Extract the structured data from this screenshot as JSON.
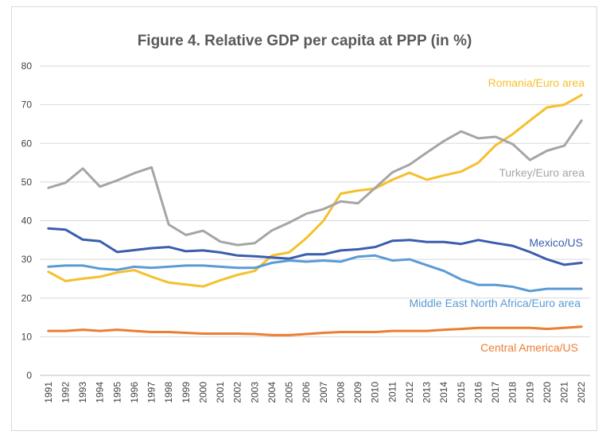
{
  "chart_data": {
    "type": "line",
    "title": "Figure 4. Relative GDP per capita at PPP (in %)",
    "xlabel": "",
    "ylabel": "",
    "ylim": [
      0,
      80
    ],
    "yticks": [
      0,
      10,
      20,
      30,
      40,
      50,
      60,
      70,
      80
    ],
    "grid": "horizontal",
    "legend": "inline labels",
    "x": [
      "1991",
      "1992",
      "1993",
      "1994",
      "1995",
      "1996",
      "1997",
      "1998",
      "1999",
      "2000",
      "2001",
      "2002",
      "2003",
      "2004",
      "2005",
      "2006",
      "2007",
      "2008",
      "2009",
      "2010",
      "2011",
      "2012",
      "2013",
      "2014",
      "2015",
      "2016",
      "2017",
      "2018",
      "2019",
      "2020",
      "2021",
      "2022"
    ],
    "series": [
      {
        "name": "Romania/Euro area",
        "color": "#F5C02C",
        "values": [
          26.8,
          24.4,
          25.0,
          25.5,
          26.6,
          27.2,
          25.5,
          24.0,
          23.5,
          23.0,
          24.6,
          26.0,
          27.0,
          31.0,
          31.8,
          35.5,
          40.0,
          47.0,
          47.8,
          48.3,
          50.6,
          52.4,
          50.6,
          51.7,
          52.7,
          55.0,
          59.5,
          62.4,
          65.9,
          69.3,
          70.0,
          72.5
        ]
      },
      {
        "name": "Turkey/Euro area",
        "color": "#A5A5A5",
        "values": [
          48.5,
          49.8,
          53.5,
          48.8,
          50.4,
          52.3,
          53.8,
          39.0,
          36.3,
          37.4,
          34.6,
          33.7,
          34.2,
          37.5,
          39.5,
          41.8,
          43.0,
          45.0,
          44.5,
          48.5,
          52.5,
          54.5,
          57.6,
          60.6,
          63.1,
          61.3,
          61.7,
          59.8,
          55.7,
          58.1,
          59.4,
          65.9
        ]
      },
      {
        "name": "Mexico/US",
        "color": "#3A5DAE",
        "values": [
          38.0,
          37.7,
          35.1,
          34.7,
          31.9,
          32.4,
          32.9,
          33.2,
          32.1,
          32.3,
          31.8,
          31.0,
          30.8,
          30.5,
          30.2,
          31.3,
          31.3,
          32.3,
          32.6,
          33.2,
          34.8,
          35.0,
          34.5,
          34.5,
          34.0,
          35.0,
          34.2,
          33.5,
          31.9,
          30.0,
          28.6,
          29.1
        ]
      },
      {
        "name": "Middle East North Africa/Euro area",
        "color": "#5B9BD5",
        "values": [
          28.1,
          28.4,
          28.4,
          27.6,
          27.3,
          28.1,
          27.8,
          28.1,
          28.4,
          28.4,
          28.1,
          27.8,
          27.8,
          29.1,
          29.7,
          29.4,
          29.7,
          29.4,
          30.7,
          31.0,
          29.7,
          30.0,
          28.5,
          27.0,
          24.8,
          23.4,
          23.4,
          22.9,
          21.8,
          22.4,
          22.4,
          22.4
        ]
      },
      {
        "name": "Central America/US",
        "color": "#ED7D31",
        "values": [
          11.5,
          11.5,
          11.8,
          11.5,
          11.8,
          11.5,
          11.2,
          11.2,
          11.0,
          10.8,
          10.8,
          10.8,
          10.7,
          10.4,
          10.4,
          10.7,
          11.0,
          11.2,
          11.2,
          11.2,
          11.5,
          11.5,
          11.5,
          11.8,
          12.0,
          12.3,
          12.3,
          12.3,
          12.3,
          12.0,
          12.3,
          12.6
        ]
      }
    ]
  }
}
